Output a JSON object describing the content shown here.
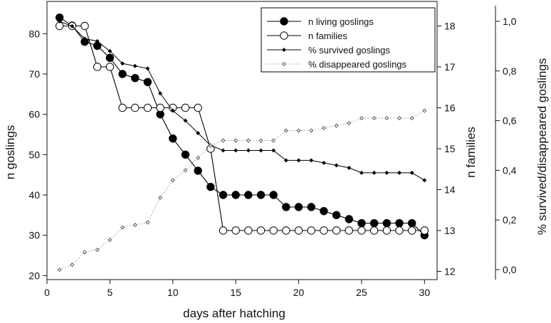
{
  "chart_data": {
    "type": "line",
    "xlabel": "days after hatching",
    "ylabel_left": "n goslings",
    "ylabel_right1": "n families",
    "ylabel_right2": "% survived/disappeared goslings",
    "x_range": [
      0,
      31
    ],
    "x_ticks": [
      "0",
      "5",
      "10",
      "15",
      "20",
      "25",
      "30"
    ],
    "y_left_range": [
      19,
      88
    ],
    "y_left_ticks": [
      "20",
      "30",
      "40",
      "50",
      "60",
      "70",
      "80"
    ],
    "y_right1_range": [
      11.8,
      18.6
    ],
    "y_right1_ticks": [
      "12",
      "13",
      "14",
      "15",
      "16",
      "17",
      "18"
    ],
    "y_right2_range": [
      -0.04,
      1.08
    ],
    "y_right2_ticks": [
      "0,0",
      "0,2",
      "0,4",
      "0,6",
      "0,8",
      "1,0"
    ],
    "grid": false,
    "legend_position": "top-right",
    "series": [
      {
        "name": "n living goslings",
        "axis": "left",
        "marker": "filled-circle",
        "x": [
          1,
          2,
          3,
          4,
          5,
          6,
          7,
          8,
          9,
          10,
          11,
          12,
          13,
          14,
          15,
          16,
          17,
          18,
          19,
          20,
          21,
          22,
          23,
          24,
          25,
          26,
          27,
          28,
          29,
          30
        ],
        "values": [
          84,
          82,
          78,
          77,
          74,
          70,
          69,
          68,
          60,
          54,
          50,
          46,
          42,
          40,
          40,
          40,
          40,
          40,
          37,
          37,
          37,
          36,
          35,
          34,
          33,
          33,
          33,
          33,
          33,
          30
        ]
      },
      {
        "name": "n families",
        "axis": "right1",
        "marker": "open-circle",
        "x": [
          1,
          2,
          3,
          4,
          5,
          6,
          7,
          8,
          9,
          10,
          11,
          12,
          13,
          14,
          15,
          16,
          17,
          18,
          19,
          20,
          21,
          22,
          23,
          24,
          25,
          26,
          27,
          28,
          29,
          30
        ],
        "values": [
          18,
          18,
          18,
          17,
          17,
          16,
          16,
          16,
          16,
          16,
          16,
          16,
          15,
          13,
          13,
          13,
          13,
          13,
          13,
          13,
          13,
          13,
          13,
          13,
          13,
          13,
          13,
          13,
          13,
          13
        ]
      },
      {
        "name": "% survived goslings",
        "axis": "right2",
        "marker": "small-filled-diamond",
        "x": [
          1,
          2,
          3,
          4,
          5,
          6,
          7,
          8,
          9,
          10,
          11,
          12,
          13,
          14,
          15,
          16,
          17,
          18,
          19,
          20,
          21,
          22,
          23,
          24,
          25,
          26,
          27,
          28,
          29,
          30
        ],
        "values": [
          1.0,
          0.98,
          0.93,
          0.92,
          0.88,
          0.83,
          0.82,
          0.81,
          0.71,
          0.64,
          0.6,
          0.55,
          0.5,
          0.48,
          0.48,
          0.48,
          0.48,
          0.48,
          0.44,
          0.44,
          0.44,
          0.43,
          0.42,
          0.41,
          0.39,
          0.39,
          0.39,
          0.39,
          0.39,
          0.36
        ]
      },
      {
        "name": "% disappeared goslings",
        "axis": "right2",
        "marker": "small-open-diamond",
        "x": [
          1,
          2,
          3,
          4,
          5,
          6,
          7,
          8,
          9,
          10,
          11,
          12,
          13,
          14,
          15,
          16,
          17,
          18,
          19,
          20,
          21,
          22,
          23,
          24,
          25,
          26,
          27,
          28,
          29,
          30
        ],
        "values": [
          0.0,
          0.02,
          0.07,
          0.08,
          0.12,
          0.17,
          0.18,
          0.19,
          0.29,
          0.36,
          0.4,
          0.45,
          0.5,
          0.52,
          0.52,
          0.52,
          0.52,
          0.52,
          0.56,
          0.56,
          0.56,
          0.57,
          0.58,
          0.59,
          0.61,
          0.61,
          0.61,
          0.61,
          0.61,
          0.64
        ]
      }
    ]
  }
}
